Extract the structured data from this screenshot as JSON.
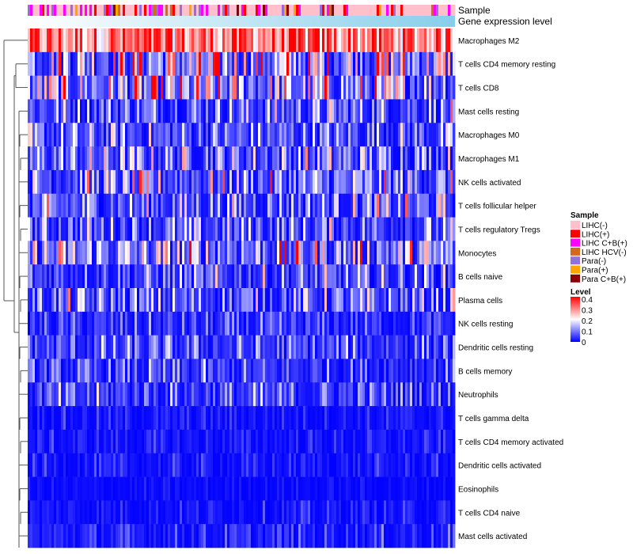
{
  "chart_data": {
    "type": "heatmap",
    "annotations": [
      "Sample",
      "Gene expression level"
    ],
    "rows": [
      "Macrophages M2",
      "T cells CD4 memory resting",
      "T cells CD8",
      "Mast cells resting",
      "Macrophages M0",
      "Macrophages M1",
      "NK cells activated",
      "T cells follicular helper",
      "T cells regulatory  Tregs",
      "Monocytes",
      "B cells naive",
      "Plasma cells",
      "NK cells resting",
      "Dendritic cells resting",
      "B cells memory",
      "Neutrophils",
      "T cells gamma delta",
      "T cells CD4 memory activated",
      "Dendritic cells activated",
      "Eosinophils",
      "T cells CD4 naive",
      "Mast cells activated"
    ],
    "row_mean_level": [
      0.3,
      0.17,
      0.14,
      0.09,
      0.08,
      0.1,
      0.1,
      0.09,
      0.08,
      0.13,
      0.07,
      0.08,
      0.04,
      0.06,
      0.05,
      0.06,
      0.02,
      0.02,
      0.02,
      0.01,
      0.02,
      0.03
    ],
    "n_columns_rendered": 180,
    "sample_legend": {
      "title": "Sample",
      "entries": [
        {
          "label": "LIHC(-)",
          "color": "#FFC0CB"
        },
        {
          "label": "LIHC(+)",
          "color": "#FF0000"
        },
        {
          "label": "LIHC C+B(+)",
          "color": "#FF00FF"
        },
        {
          "label": "LIHC HCV(-)",
          "color": "#D2691E"
        },
        {
          "label": "Para(-)",
          "color": "#9370DB"
        },
        {
          "label": "Para(+)",
          "color": "#FFA500"
        },
        {
          "label": "Para C+B(+)",
          "color": "#8B0000"
        }
      ]
    },
    "level_legend": {
      "title": "Level",
      "ticks": [
        "0.4",
        "0.3",
        "0.2",
        "0.1",
        "0"
      ],
      "range": [
        0,
        0.4
      ],
      "colors": [
        "#0000FF",
        "#FFFFFF",
        "#FF0000"
      ]
    },
    "gene_expression_colors": [
      "#FFFFFF",
      "#87CEEB"
    ]
  }
}
